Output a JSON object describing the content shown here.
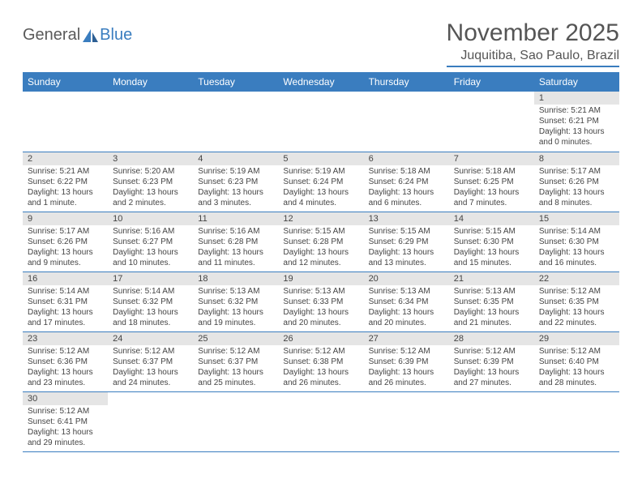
{
  "logo": {
    "text1": "General",
    "text2": "Blue"
  },
  "title": "November 2025",
  "location": "Juquitiba, Sao Paulo, Brazil",
  "colors": {
    "header_bg": "#3a7dbf",
    "header_text": "#ffffff",
    "daynum_bg": "#e5e5e5",
    "border": "#3a7dbf",
    "text": "#444444",
    "logo_gray": "#5a5a5a",
    "logo_blue": "#3a7dbf"
  },
  "weekdays": [
    "Sunday",
    "Monday",
    "Tuesday",
    "Wednesday",
    "Thursday",
    "Friday",
    "Saturday"
  ],
  "weeks": [
    [
      null,
      null,
      null,
      null,
      null,
      null,
      {
        "n": "1",
        "sr": "5:21 AM",
        "ss": "6:21 PM",
        "dl": "13 hours and 0 minutes."
      }
    ],
    [
      {
        "n": "2",
        "sr": "5:21 AM",
        "ss": "6:22 PM",
        "dl": "13 hours and 1 minute."
      },
      {
        "n": "3",
        "sr": "5:20 AM",
        "ss": "6:23 PM",
        "dl": "13 hours and 2 minutes."
      },
      {
        "n": "4",
        "sr": "5:19 AM",
        "ss": "6:23 PM",
        "dl": "13 hours and 3 minutes."
      },
      {
        "n": "5",
        "sr": "5:19 AM",
        "ss": "6:24 PM",
        "dl": "13 hours and 4 minutes."
      },
      {
        "n": "6",
        "sr": "5:18 AM",
        "ss": "6:24 PM",
        "dl": "13 hours and 6 minutes."
      },
      {
        "n": "7",
        "sr": "5:18 AM",
        "ss": "6:25 PM",
        "dl": "13 hours and 7 minutes."
      },
      {
        "n": "8",
        "sr": "5:17 AM",
        "ss": "6:26 PM",
        "dl": "13 hours and 8 minutes."
      }
    ],
    [
      {
        "n": "9",
        "sr": "5:17 AM",
        "ss": "6:26 PM",
        "dl": "13 hours and 9 minutes."
      },
      {
        "n": "10",
        "sr": "5:16 AM",
        "ss": "6:27 PM",
        "dl": "13 hours and 10 minutes."
      },
      {
        "n": "11",
        "sr": "5:16 AM",
        "ss": "6:28 PM",
        "dl": "13 hours and 11 minutes."
      },
      {
        "n": "12",
        "sr": "5:15 AM",
        "ss": "6:28 PM",
        "dl": "13 hours and 12 minutes."
      },
      {
        "n": "13",
        "sr": "5:15 AM",
        "ss": "6:29 PM",
        "dl": "13 hours and 13 minutes."
      },
      {
        "n": "14",
        "sr": "5:15 AM",
        "ss": "6:30 PM",
        "dl": "13 hours and 15 minutes."
      },
      {
        "n": "15",
        "sr": "5:14 AM",
        "ss": "6:30 PM",
        "dl": "13 hours and 16 minutes."
      }
    ],
    [
      {
        "n": "16",
        "sr": "5:14 AM",
        "ss": "6:31 PM",
        "dl": "13 hours and 17 minutes."
      },
      {
        "n": "17",
        "sr": "5:14 AM",
        "ss": "6:32 PM",
        "dl": "13 hours and 18 minutes."
      },
      {
        "n": "18",
        "sr": "5:13 AM",
        "ss": "6:32 PM",
        "dl": "13 hours and 19 minutes."
      },
      {
        "n": "19",
        "sr": "5:13 AM",
        "ss": "6:33 PM",
        "dl": "13 hours and 20 minutes."
      },
      {
        "n": "20",
        "sr": "5:13 AM",
        "ss": "6:34 PM",
        "dl": "13 hours and 20 minutes."
      },
      {
        "n": "21",
        "sr": "5:13 AM",
        "ss": "6:35 PM",
        "dl": "13 hours and 21 minutes."
      },
      {
        "n": "22",
        "sr": "5:12 AM",
        "ss": "6:35 PM",
        "dl": "13 hours and 22 minutes."
      }
    ],
    [
      {
        "n": "23",
        "sr": "5:12 AM",
        "ss": "6:36 PM",
        "dl": "13 hours and 23 minutes."
      },
      {
        "n": "24",
        "sr": "5:12 AM",
        "ss": "6:37 PM",
        "dl": "13 hours and 24 minutes."
      },
      {
        "n": "25",
        "sr": "5:12 AM",
        "ss": "6:37 PM",
        "dl": "13 hours and 25 minutes."
      },
      {
        "n": "26",
        "sr": "5:12 AM",
        "ss": "6:38 PM",
        "dl": "13 hours and 26 minutes."
      },
      {
        "n": "27",
        "sr": "5:12 AM",
        "ss": "6:39 PM",
        "dl": "13 hours and 26 minutes."
      },
      {
        "n": "28",
        "sr": "5:12 AM",
        "ss": "6:39 PM",
        "dl": "13 hours and 27 minutes."
      },
      {
        "n": "29",
        "sr": "5:12 AM",
        "ss": "6:40 PM",
        "dl": "13 hours and 28 minutes."
      }
    ],
    [
      {
        "n": "30",
        "sr": "5:12 AM",
        "ss": "6:41 PM",
        "dl": "13 hours and 29 minutes."
      },
      null,
      null,
      null,
      null,
      null,
      null
    ]
  ],
  "labels": {
    "sunrise": "Sunrise: ",
    "sunset": "Sunset: ",
    "daylight": "Daylight: "
  }
}
